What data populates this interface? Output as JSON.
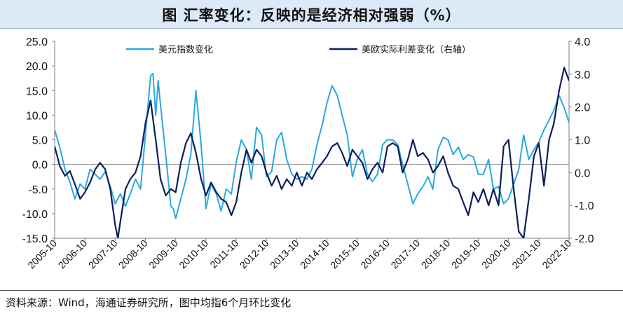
{
  "header": {
    "title": "图  汇率变化：反映的是经济相对强弱（%）"
  },
  "footer": {
    "source": "资料来源：Wind，海通证券研究所，图中均指6个月环比变化"
  },
  "chart_data": {
    "type": "line",
    "categories": [
      "2005-10",
      "2006-10",
      "2007-10",
      "2008-10",
      "2009-10",
      "2010-10",
      "2011-10",
      "2012-10",
      "2013-10",
      "2014-10",
      "2015-10",
      "2016-10",
      "2017-10",
      "2018-10",
      "2019-10",
      "2020-10",
      "2021-10",
      "2022-10"
    ],
    "ylim_left": [
      -15,
      25
    ],
    "ylim_right": [
      -2,
      4
    ],
    "yticks_left": [
      "25.0",
      "20.0",
      "15.0",
      "10.0",
      "5.0",
      "0.0",
      "-5.0",
      "-10.0",
      "-15.0"
    ],
    "yticks_right": [
      "4.0",
      "3.0",
      "2.0",
      "1.0",
      "0.0",
      "-1.0",
      "-2.0"
    ],
    "series": [
      {
        "name": "美元指数变化",
        "axis": "left",
        "color": "#29a8e0",
        "points": [
          [
            2005.83,
            7.0
          ],
          [
            2006.0,
            3.5
          ],
          [
            2006.17,
            -1.0
          ],
          [
            2006.33,
            -3.5
          ],
          [
            2006.5,
            -7.0
          ],
          [
            2006.67,
            -4.0
          ],
          [
            2006.83,
            -5.0
          ],
          [
            2007.0,
            -1.0
          ],
          [
            2007.17,
            -2.0
          ],
          [
            2007.33,
            -3.0
          ],
          [
            2007.5,
            -1.5
          ],
          [
            2007.67,
            -4.5
          ],
          [
            2007.83,
            -8.0
          ],
          [
            2008.0,
            -6.0
          ],
          [
            2008.17,
            -8.5
          ],
          [
            2008.33,
            -6.0
          ],
          [
            2008.5,
            -3.0
          ],
          [
            2008.67,
            -5.0
          ],
          [
            2008.83,
            6.0
          ],
          [
            2009.0,
            18.0
          ],
          [
            2009.08,
            18.5
          ],
          [
            2009.17,
            10.0
          ],
          [
            2009.25,
            17.0
          ],
          [
            2009.33,
            12.0
          ],
          [
            2009.5,
            2.0
          ],
          [
            2009.67,
            -8.5
          ],
          [
            2009.75,
            -9.0
          ],
          [
            2009.83,
            -11.0
          ],
          [
            2010.0,
            -7.0
          ],
          [
            2010.17,
            -3.0
          ],
          [
            2010.33,
            2.0
          ],
          [
            2010.5,
            15.0
          ],
          [
            2010.67,
            4.0
          ],
          [
            2010.83,
            -9.0
          ],
          [
            2011.0,
            -4.0
          ],
          [
            2011.17,
            -6.0
          ],
          [
            2011.33,
            -9.5
          ],
          [
            2011.5,
            -5.0
          ],
          [
            2011.67,
            -6.0
          ],
          [
            2011.83,
            0.5
          ],
          [
            2012.0,
            5.0
          ],
          [
            2012.17,
            3.0
          ],
          [
            2012.33,
            -3.0
          ],
          [
            2012.5,
            7.5
          ],
          [
            2012.67,
            6.0
          ],
          [
            2012.83,
            -2.5
          ],
          [
            2013.0,
            -1.5
          ],
          [
            2013.17,
            5.0
          ],
          [
            2013.33,
            6.5
          ],
          [
            2013.5,
            1.0
          ],
          [
            2013.67,
            -2.0
          ],
          [
            2013.83,
            -3.0
          ],
          [
            2014.0,
            -2.5
          ],
          [
            2014.17,
            -3.0
          ],
          [
            2014.33,
            -1.0
          ],
          [
            2014.5,
            4.0
          ],
          [
            2014.67,
            8.0
          ],
          [
            2014.83,
            12.5
          ],
          [
            2015.0,
            16.0
          ],
          [
            2015.17,
            14.0
          ],
          [
            2015.33,
            10.0
          ],
          [
            2015.5,
            6.0
          ],
          [
            2015.67,
            -2.5
          ],
          [
            2015.83,
            1.0
          ],
          [
            2016.0,
            3.0
          ],
          [
            2016.17,
            -2.0
          ],
          [
            2016.33,
            -3.5
          ],
          [
            2016.5,
            -2.0
          ],
          [
            2016.67,
            4.0
          ],
          [
            2016.83,
            5.0
          ],
          [
            2017.0,
            5.0
          ],
          [
            2017.17,
            4.0
          ],
          [
            2017.33,
            0.0
          ],
          [
            2017.5,
            -4.0
          ],
          [
            2017.67,
            -8.0
          ],
          [
            2017.83,
            -6.0
          ],
          [
            2018.0,
            -4.5
          ],
          [
            2018.17,
            -2.5
          ],
          [
            2018.33,
            -5.0
          ],
          [
            2018.5,
            3.0
          ],
          [
            2018.67,
            5.5
          ],
          [
            2018.83,
            5.0
          ],
          [
            2019.0,
            2.0
          ],
          [
            2019.17,
            3.5
          ],
          [
            2019.33,
            1.0
          ],
          [
            2019.5,
            2.0
          ],
          [
            2019.67,
            1.5
          ],
          [
            2019.83,
            -2.0
          ],
          [
            2020.0,
            -2.0
          ],
          [
            2020.17,
            1.0
          ],
          [
            2020.33,
            -5.0
          ],
          [
            2020.5,
            -4.5
          ],
          [
            2020.67,
            -8.0
          ],
          [
            2020.83,
            -7.0
          ],
          [
            2021.0,
            -4.0
          ],
          [
            2021.17,
            -1.0
          ],
          [
            2021.33,
            6.0
          ],
          [
            2021.5,
            1.0
          ],
          [
            2021.67,
            3.0
          ],
          [
            2021.83,
            4.5
          ],
          [
            2022.0,
            7.0
          ],
          [
            2022.17,
            9.0
          ],
          [
            2022.33,
            11.0
          ],
          [
            2022.5,
            14.0
          ],
          [
            2022.67,
            11.5
          ],
          [
            2022.83,
            8.5
          ]
        ]
      },
      {
        "name": "美欧实际利差变化（右轴）",
        "axis": "right",
        "color": "#0b1f5c",
        "points": [
          [
            2005.83,
            0.8
          ],
          [
            2006.0,
            0.2
          ],
          [
            2006.17,
            -0.1
          ],
          [
            2006.33,
            0.05
          ],
          [
            2006.5,
            -0.35
          ],
          [
            2006.67,
            -0.8
          ],
          [
            2006.83,
            -0.6
          ],
          [
            2007.0,
            -0.3
          ],
          [
            2007.17,
            0.1
          ],
          [
            2007.33,
            0.3
          ],
          [
            2007.5,
            0.1
          ],
          [
            2007.67,
            -0.5
          ],
          [
            2007.83,
            -1.6
          ],
          [
            2007.92,
            -2.0
          ],
          [
            2008.0,
            -1.5
          ],
          [
            2008.17,
            -0.5
          ],
          [
            2008.33,
            -0.2
          ],
          [
            2008.5,
            0.0
          ],
          [
            2008.67,
            0.5
          ],
          [
            2008.83,
            1.5
          ],
          [
            2009.0,
            2.2
          ],
          [
            2009.17,
            1.0
          ],
          [
            2009.33,
            -0.2
          ],
          [
            2009.5,
            -0.7
          ],
          [
            2009.67,
            -0.5
          ],
          [
            2009.83,
            -0.6
          ],
          [
            2010.0,
            0.3
          ],
          [
            2010.17,
            0.9
          ],
          [
            2010.33,
            1.2
          ],
          [
            2010.5,
            0.6
          ],
          [
            2010.67,
            -0.2
          ],
          [
            2010.83,
            -0.7
          ],
          [
            2011.0,
            -0.3
          ],
          [
            2011.17,
            -0.6
          ],
          [
            2011.33,
            -0.8
          ],
          [
            2011.5,
            -0.9
          ],
          [
            2011.67,
            -1.3
          ],
          [
            2011.83,
            -0.9
          ],
          [
            2012.0,
            0.0
          ],
          [
            2012.17,
            0.7
          ],
          [
            2012.33,
            0.3
          ],
          [
            2012.5,
            0.7
          ],
          [
            2012.67,
            0.5
          ],
          [
            2012.83,
            0.0
          ],
          [
            2013.0,
            -0.4
          ],
          [
            2013.17,
            -0.1
          ],
          [
            2013.33,
            -0.5
          ],
          [
            2013.5,
            -0.2
          ],
          [
            2013.67,
            -0.4
          ],
          [
            2013.83,
            0.0
          ],
          [
            2014.0,
            -0.4
          ],
          [
            2014.17,
            0.0
          ],
          [
            2014.33,
            -0.2
          ],
          [
            2014.5,
            0.1
          ],
          [
            2014.67,
            0.3
          ],
          [
            2014.83,
            0.5
          ],
          [
            2015.0,
            0.8
          ],
          [
            2015.17,
            0.9
          ],
          [
            2015.33,
            0.6
          ],
          [
            2015.5,
            0.2
          ],
          [
            2015.67,
            0.7
          ],
          [
            2015.83,
            0.5
          ],
          [
            2016.0,
            0.3
          ],
          [
            2016.17,
            -0.2
          ],
          [
            2016.33,
            0.1
          ],
          [
            2016.5,
            0.3
          ],
          [
            2016.67,
            0.0
          ],
          [
            2016.83,
            0.8
          ],
          [
            2017.0,
            0.9
          ],
          [
            2017.17,
            0.8
          ],
          [
            2017.33,
            0.0
          ],
          [
            2017.5,
            0.4
          ],
          [
            2017.67,
            1.0
          ],
          [
            2017.83,
            0.5
          ],
          [
            2018.0,
            0.6
          ],
          [
            2018.17,
            0.4
          ],
          [
            2018.33,
            0.0
          ],
          [
            2018.5,
            0.2
          ],
          [
            2018.67,
            0.5
          ],
          [
            2018.83,
            0.0
          ],
          [
            2019.0,
            -0.4
          ],
          [
            2019.17,
            -0.5
          ],
          [
            2019.33,
            -0.9
          ],
          [
            2019.5,
            -1.3
          ],
          [
            2019.67,
            -0.6
          ],
          [
            2019.83,
            -0.9
          ],
          [
            2020.0,
            -0.5
          ],
          [
            2020.17,
            -1.0
          ],
          [
            2020.33,
            -0.5
          ],
          [
            2020.5,
            -1.0
          ],
          [
            2020.67,
            0.8
          ],
          [
            2020.83,
            1.0
          ],
          [
            2021.0,
            -0.5
          ],
          [
            2021.17,
            -1.8
          ],
          [
            2021.33,
            -2.0
          ],
          [
            2021.5,
            -0.8
          ],
          [
            2021.67,
            0.5
          ],
          [
            2021.83,
            0.9
          ],
          [
            2022.0,
            -0.4
          ],
          [
            2022.17,
            1.0
          ],
          [
            2022.33,
            1.5
          ],
          [
            2022.5,
            2.5
          ],
          [
            2022.67,
            3.2
          ],
          [
            2022.83,
            2.8
          ]
        ]
      }
    ],
    "legend_position": "top",
    "zero_line": true,
    "grid": false
  }
}
